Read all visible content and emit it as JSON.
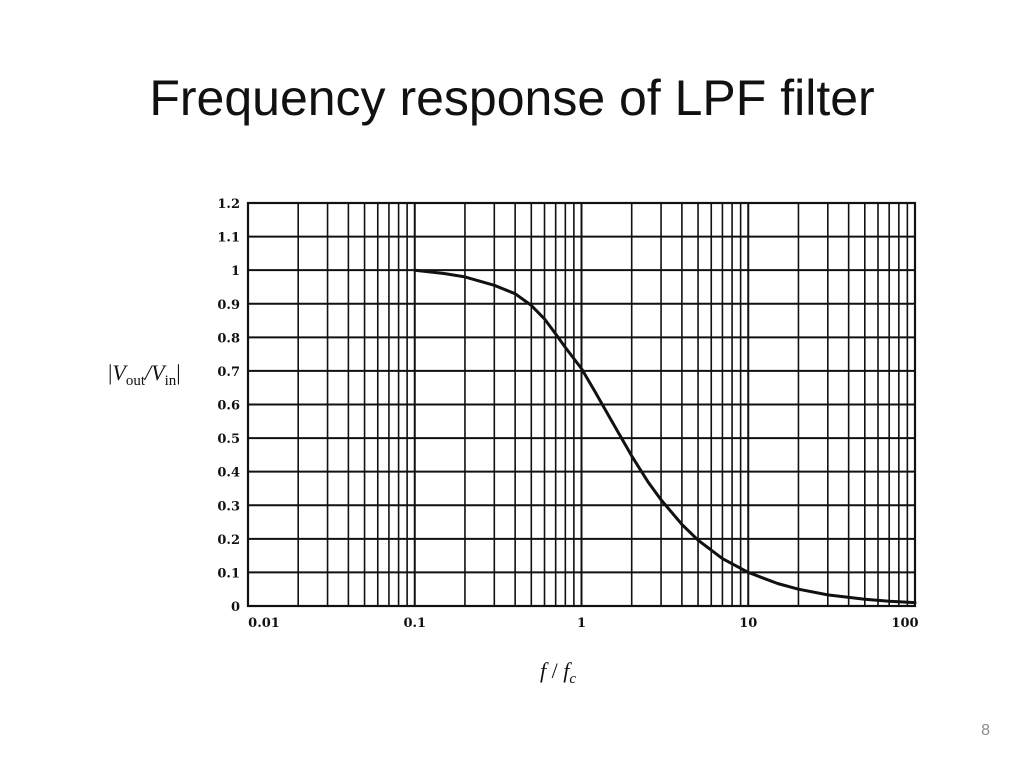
{
  "slide": {
    "title": "Frequency response of LPF filter",
    "page_number": "8"
  },
  "chart_data": {
    "type": "line",
    "x_scale": "log",
    "xlim": [
      0.01,
      100
    ],
    "ylim": [
      0,
      1.2
    ],
    "grid": true,
    "ylabel": "|Vout/Vin|",
    "xlabel": "f/fc",
    "x_ticks": [
      {
        "value": 0.01,
        "label": "0.01"
      },
      {
        "value": 0.1,
        "label": "0.1"
      },
      {
        "value": 1,
        "label": "1"
      },
      {
        "value": 10,
        "label": "10"
      },
      {
        "value": 100,
        "label": "100"
      }
    ],
    "y_ticks": [
      {
        "value": 0,
        "label": "0"
      },
      {
        "value": 0.1,
        "label": "0.1"
      },
      {
        "value": 0.2,
        "label": "0.2"
      },
      {
        "value": 0.3,
        "label": "0.3"
      },
      {
        "value": 0.4,
        "label": "0.4"
      },
      {
        "value": 0.5,
        "label": "0.5"
      },
      {
        "value": 0.6,
        "label": "0.6"
      },
      {
        "value": 0.7,
        "label": "0.7"
      },
      {
        "value": 0.8,
        "label": "0.8"
      },
      {
        "value": 0.9,
        "label": "0.9"
      },
      {
        "value": 1,
        "label": "1"
      },
      {
        "value": 1.1,
        "label": "1.1"
      },
      {
        "value": 1.2,
        "label": "1.2"
      }
    ],
    "series": [
      {
        "color": "#111111",
        "x": [
          0.1,
          0.15,
          0.2,
          0.3,
          0.4,
          0.5,
          0.6,
          0.7,
          0.8,
          1.0,
          1.2,
          1.5,
          2.0,
          2.5,
          3.0,
          4.0,
          5.0,
          7.0,
          10,
          15,
          20,
          30,
          50,
          70,
          100
        ],
        "values": [
          1.0,
          0.99,
          0.98,
          0.955,
          0.93,
          0.895,
          0.855,
          0.81,
          0.77,
          0.707,
          0.64,
          0.555,
          0.447,
          0.37,
          0.316,
          0.243,
          0.196,
          0.141,
          0.1,
          0.067,
          0.05,
          0.033,
          0.02,
          0.014,
          0.01
        ]
      }
    ]
  }
}
